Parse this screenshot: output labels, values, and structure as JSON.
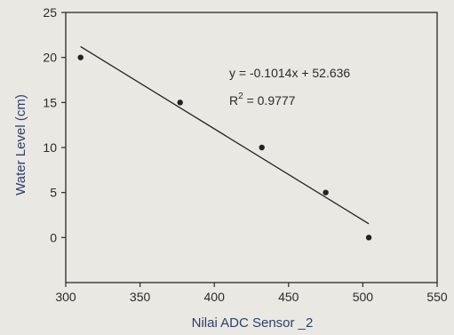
{
  "chart_data": {
    "type": "scatter",
    "title": "",
    "xlabel": "Nilai ADC Sensor _2",
    "ylabel": "Water Level (cm)",
    "xlim": [
      300,
      550
    ],
    "ylim": [
      -5,
      25
    ],
    "xticks": [
      300,
      350,
      400,
      450,
      500,
      550
    ],
    "yticks": [
      0,
      5,
      10,
      15,
      20,
      25
    ],
    "grid": false,
    "legend": "none",
    "series": [
      {
        "points": [
          {
            "x": 310,
            "y": 20
          },
          {
            "x": 377,
            "y": 15
          },
          {
            "x": 432,
            "y": 10
          },
          {
            "x": 475,
            "y": 5
          },
          {
            "x": 504,
            "y": 0
          }
        ]
      }
    ],
    "trendline": {
      "slope": -0.1014,
      "intercept": 52.636,
      "x_range": [
        310,
        504
      ]
    },
    "annotations": {
      "equation_prefix": "y = -0.1014x + 52.636",
      "r2_prefix": "R",
      "r2_sup": "2",
      "r2_suffix": " = 0.9777"
    },
    "colors": {
      "axis": "#2a2a2a",
      "marker": "#222222",
      "line": "#222222",
      "axis_title": "#2f3e6a"
    }
  }
}
